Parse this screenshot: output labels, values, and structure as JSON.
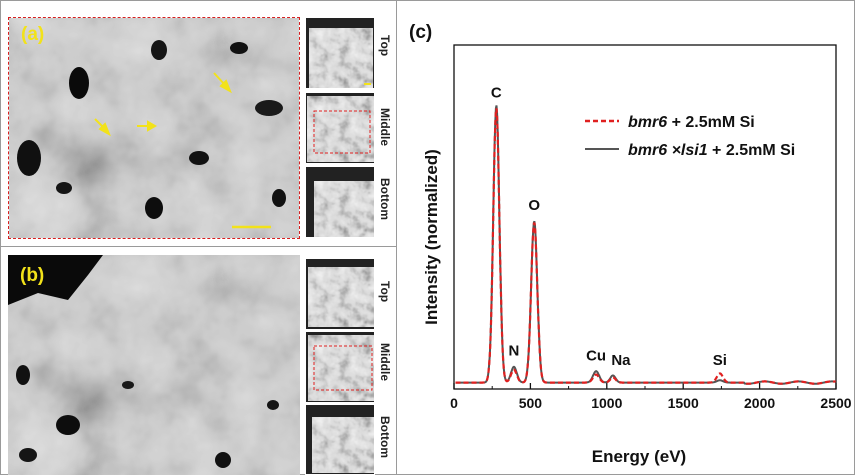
{
  "figure": {
    "panel_a": {
      "label": "(a)",
      "thumb_labels": [
        "Top",
        "Middle",
        "Bottom"
      ],
      "marker_color": "#f2e21a"
    },
    "panel_b": {
      "label": "(b)",
      "thumb_labels": [
        "Top",
        "Middle",
        "Bottom"
      ]
    },
    "panel_c": {
      "label": "(c)"
    },
    "accent_red": "#e02020",
    "accent_gray": "#555555"
  },
  "chart_data": {
    "type": "line",
    "xlabel": "Energy (eV)",
    "ylabel": "Intensity (normalized)",
    "xlim": [
      0,
      2500
    ],
    "ylim": [
      0,
      1
    ],
    "xticks": [
      0,
      500,
      1000,
      1500,
      2000,
      2500
    ],
    "grid": false,
    "legend_position": "top-right",
    "series": [
      {
        "name": "bmr6 + 2.5mM Si",
        "legend_italic": "bmr6",
        "legend_rest": " + 2.5mM Si",
        "style": "dashed",
        "color": "#e02020",
        "peaks": [
          {
            "x": 277,
            "y": 0.96
          },
          {
            "x": 392,
            "y": 0.045
          },
          {
            "x": 525,
            "y": 0.56
          },
          {
            "x": 930,
            "y": 0.028
          },
          {
            "x": 1040,
            "y": 0.018
          },
          {
            "x": 1740,
            "y": 0.032
          }
        ]
      },
      {
        "name": "bmr6 ×lsi1 + 2.5mM Si",
        "legend_italic": "bmr6 ×lsi1",
        "legend_rest": " + 2.5mM Si",
        "style": "solid",
        "color": "#555555",
        "peaks": [
          {
            "x": 277,
            "y": 0.97
          },
          {
            "x": 392,
            "y": 0.055
          },
          {
            "x": 525,
            "y": 0.565
          },
          {
            "x": 930,
            "y": 0.04
          },
          {
            "x": 1040,
            "y": 0.025
          },
          {
            "x": 1740,
            "y": 0.008
          }
        ]
      }
    ],
    "annotations": [
      {
        "text": "C",
        "x": 277,
        "y": 0.96
      },
      {
        "text": "O",
        "x": 525,
        "y": 0.56
      },
      {
        "text": "N",
        "x": 392,
        "y": 0.055
      },
      {
        "text": "Cu",
        "x": 930,
        "y": 0.04
      },
      {
        "text": "Na",
        "x": 1040,
        "y": 0.025
      },
      {
        "text": "Si",
        "x": 1740,
        "y": 0.032
      }
    ]
  }
}
